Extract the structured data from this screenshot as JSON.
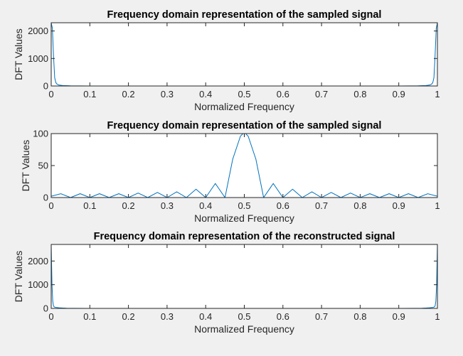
{
  "figure": {
    "background": "#f0f0f0",
    "line_color": "#0072bd"
  },
  "chart_data": [
    {
      "type": "line",
      "title": "Frequency domain representation of the sampled signal",
      "xlabel": "Normalized Frequency",
      "ylabel": "DFT Values",
      "xlim": [
        0,
        1
      ],
      "ylim": [
        0,
        2300
      ],
      "xticks": [
        0,
        0.1,
        0.2,
        0.3,
        0.4,
        0.5,
        0.6,
        0.7,
        0.8,
        0.9,
        1
      ],
      "xtick_labels": [
        "0",
        "0.1",
        "0.2",
        "0.3",
        "0.4",
        "0.5",
        "0.6",
        "0.7",
        "0.8",
        "0.9",
        "1"
      ],
      "yticks": [
        0,
        1000,
        2000
      ],
      "ytick_labels": [
        "0",
        "1000",
        "2000"
      ],
      "grid": false,
      "series": [
        {
          "x": [
            0,
            0.003,
            0.006,
            0.009,
            0.012,
            0.015,
            0.02,
            0.03,
            0.05,
            0.1,
            0.2,
            0.3,
            0.4,
            0.5,
            0.6,
            0.7,
            0.8,
            0.9,
            0.95,
            0.97,
            0.98,
            0.985,
            0.988,
            0.991,
            0.994,
            0.997,
            1
          ],
          "values": [
            2300,
            2100,
            1100,
            300,
            120,
            70,
            35,
            15,
            5,
            0,
            0,
            0,
            0,
            0,
            0,
            0,
            0,
            0,
            5,
            15,
            35,
            70,
            120,
            300,
            1100,
            2100,
            2300
          ]
        }
      ]
    },
    {
      "type": "line",
      "title": "Frequency domain representation of the sampled signal",
      "xlabel": "Normalized Frequency",
      "ylabel": "DFT Values",
      "xlim": [
        0,
        1
      ],
      "ylim": [
        0,
        100
      ],
      "xticks": [
        0,
        0.1,
        0.2,
        0.3,
        0.4,
        0.5,
        0.6,
        0.7,
        0.8,
        0.9,
        1
      ],
      "xtick_labels": [
        "0",
        "0.1",
        "0.2",
        "0.3",
        "0.4",
        "0.5",
        "0.6",
        "0.7",
        "0.8",
        "0.9",
        "1"
      ],
      "yticks": [
        0,
        50,
        100
      ],
      "ytick_labels": [
        "0",
        "50",
        "100"
      ],
      "grid": false,
      "series": [
        {
          "x": [
            0,
            0.025,
            0.05,
            0.075,
            0.1,
            0.125,
            0.15,
            0.175,
            0.2,
            0.225,
            0.25,
            0.275,
            0.3,
            0.325,
            0.35,
            0.375,
            0.4,
            0.425,
            0.45,
            0.47,
            0.49,
            0.5,
            0.51,
            0.53,
            0.55,
            0.575,
            0.6,
            0.625,
            0.65,
            0.675,
            0.7,
            0.725,
            0.75,
            0.775,
            0.8,
            0.825,
            0.85,
            0.875,
            0.9,
            0.925,
            0.95,
            0.975,
            1
          ],
          "values": [
            2,
            6,
            0,
            6,
            0,
            6,
            0,
            6,
            0,
            7,
            0,
            8,
            0,
            9,
            0,
            13,
            0,
            22,
            0,
            60,
            96,
            102,
            96,
            60,
            0,
            22,
            0,
            13,
            0,
            9,
            0,
            8,
            0,
            7,
            0,
            6,
            0,
            6,
            0,
            6,
            0,
            6,
            2
          ]
        }
      ]
    },
    {
      "type": "line",
      "title": "Frequency domain representation of the reconstructed signal",
      "xlabel": "Normalized Frequency",
      "ylabel": "DFT Values",
      "xlim": [
        0,
        1
      ],
      "ylim": [
        0,
        2700
      ],
      "xticks": [
        0,
        0.1,
        0.2,
        0.3,
        0.4,
        0.5,
        0.6,
        0.7,
        0.8,
        0.9,
        1
      ],
      "xtick_labels": [
        "0",
        "0.1",
        "0.2",
        "0.3",
        "0.4",
        "0.5",
        "0.6",
        "0.7",
        "0.8",
        "0.9",
        "1"
      ],
      "yticks": [
        0,
        1000,
        2000
      ],
      "ytick_labels": [
        "0",
        "1000",
        "2000"
      ],
      "grid": false,
      "series": [
        {
          "x": [
            0,
            0.002,
            0.004,
            0.006,
            0.008,
            0.012,
            0.02,
            0.03,
            0.04,
            0.06,
            0.1,
            0.3,
            0.5,
            0.7,
            0.9,
            0.94,
            0.96,
            0.97,
            0.98,
            0.988,
            0.992,
            0.994,
            0.996,
            0.998,
            1
          ],
          "values": [
            2700,
            1000,
            300,
            100,
            60,
            40,
            25,
            15,
            8,
            3,
            0,
            0,
            0,
            0,
            0,
            3,
            8,
            15,
            25,
            40,
            60,
            100,
            300,
            1000,
            2700
          ]
        }
      ]
    }
  ]
}
